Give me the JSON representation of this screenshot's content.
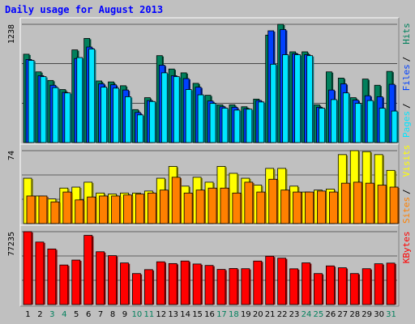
{
  "chart_data": [
    {
      "type": "bar",
      "title": "Daily usage for August 2013",
      "ymax_label": "1238",
      "legend": [
        "Pages",
        "Files",
        "Hits"
      ],
      "days": [
        "1",
        "2",
        "3",
        "4",
        "5",
        "6",
        "7",
        "8",
        "9",
        "10",
        "11",
        "12",
        "13",
        "14",
        "15",
        "16",
        "17",
        "18",
        "19",
        "20",
        "21",
        "22",
        "23",
        "24",
        "25",
        "26",
        "27",
        "28",
        "29",
        "30",
        "31"
      ],
      "weekend_days": [
        "3",
        "4",
        "10",
        "11",
        "17",
        "18",
        "24",
        "25",
        "31"
      ],
      "series": [
        {
          "name": "Hits",
          "values": [
            925,
            740,
            650,
            555,
            970,
            1090,
            645,
            635,
            595,
            345,
            470,
            910,
            770,
            730,
            620,
            495,
            395,
            395,
            375,
            455,
            1125,
            1238,
            950,
            950,
            395,
            740,
            675,
            470,
            665,
            600,
            745
          ]
        },
        {
          "name": "Files",
          "values": [
            870,
            700,
            600,
            525,
            880,
            1000,
            615,
            605,
            550,
            315,
            440,
            810,
            700,
            670,
            580,
            435,
            375,
            370,
            355,
            440,
            1170,
            1183,
            930,
            920,
            370,
            550,
            615,
            445,
            490,
            480,
            610
          ]
        },
        {
          "name": "Pages",
          "values": [
            860,
            690,
            575,
            520,
            890,
            980,
            580,
            570,
            480,
            290,
            430,
            730,
            690,
            555,
            500,
            410,
            360,
            340,
            350,
            425,
            820,
            920,
            920,
            910,
            360,
            450,
            520,
            410,
            440,
            360,
            330
          ]
        }
      ]
    },
    {
      "type": "bar",
      "ymax_label": "74",
      "legend": [
        "Sites",
        "Visits"
      ],
      "series": [
        {
          "name": "Visits",
          "values": [
            46,
            28,
            25,
            36,
            37,
            42,
            31,
            30,
            31,
            31,
            33,
            46,
            58,
            38,
            47,
            42,
            58,
            51,
            46,
            39,
            56,
            56,
            38,
            32,
            34,
            35,
            70,
            74,
            73,
            70,
            54
          ]
        },
        {
          "name": "Sites",
          "values": [
            28,
            28,
            22,
            32,
            24,
            27,
            28,
            28,
            29,
            30,
            31,
            34,
            47,
            31,
            34,
            36,
            36,
            31,
            42,
            32,
            45,
            34,
            32,
            32,
            33,
            32,
            41,
            42,
            41,
            39,
            37
          ]
        }
      ]
    },
    {
      "type": "bar",
      "ymax_label": "77235",
      "legend": [
        "KBytes"
      ],
      "series": [
        {
          "name": "KBytes",
          "values": [
            77235,
            66245,
            58893,
            41920,
            47142,
            73312,
            55979,
            51843,
            44099,
            32866,
            37020,
            45316,
            43451,
            46146,
            42982,
            41452,
            37235,
            38212,
            38002,
            46112,
            51226,
            49153,
            37895,
            44198,
            32867,
            40957,
            38993,
            32874,
            37995,
            43236,
            43912
          ]
        }
      ]
    }
  ]
}
